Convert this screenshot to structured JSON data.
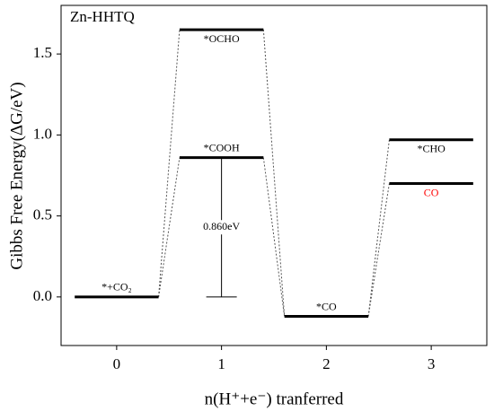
{
  "chart_data": {
    "type": "energy-diagram",
    "title": "Zn-HHTQ",
    "x_label": "n(H⁺+e⁻) tranferred",
    "y_label": "Gibbs Free Energy(ΔG/eV)",
    "xlim": [
      -0.53,
      3.53
    ],
    "ylim": [
      -0.3,
      1.8
    ],
    "xticks": [
      0,
      1,
      2,
      3
    ],
    "yticks": [
      {
        "value": 0,
        "label": "0.0"
      },
      {
        "value": 0.5,
        "label": "0.5"
      },
      {
        "value": 1,
        "label": "1.0"
      },
      {
        "value": 1.5,
        "label": "1.5"
      }
    ],
    "levels": [
      {
        "label": "*+CO₂",
        "x": 0,
        "value": 0,
        "label_pos": "above",
        "label_color": "#000000"
      },
      {
        "label": "*COOH",
        "x": 1,
        "value": 0.86,
        "label_pos": "above",
        "label_color": "#000000"
      },
      {
        "label": "*OCHO",
        "x": 1,
        "value": 1.65,
        "label_pos": "below",
        "label_color": "#000000"
      },
      {
        "label": "*CO",
        "x": 2,
        "value": -0.12,
        "label_pos": "above",
        "label_color": "#000000"
      },
      {
        "label": "*CHO",
        "x": 3,
        "value": 0.97,
        "label_pos": "below",
        "label_color": "#000000"
      },
      {
        "label": "CO",
        "x": 3,
        "value": 0.7,
        "label_pos": "below",
        "label_color": "#ff0000"
      }
    ],
    "annotation": {
      "text": "0.860eV",
      "x": 1,
      "from": 0,
      "to": 0.86
    }
  }
}
